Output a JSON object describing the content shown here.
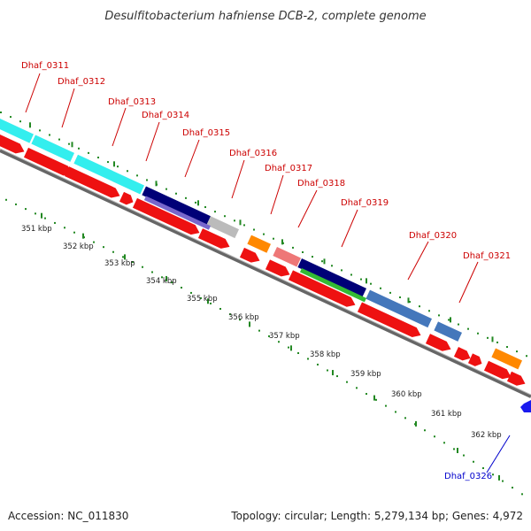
{
  "title": "Desulfitobacterium hafniense DCB-2, complete genome",
  "footer": {
    "accession": "Accession: NC_011830",
    "topology": "Topology: circular; Length: 5,279,134 bp; Genes: 4,972"
  },
  "colors": {
    "forward_label": "#cc0000",
    "reverse_label": "#0000cc",
    "red_arrow": "#ee1111",
    "backbone": "#888888",
    "tick": "#228822"
  },
  "gene_labels": [
    {
      "id": "Dhaf_0311",
      "strand": "forward"
    },
    {
      "id": "Dhaf_0312",
      "strand": "forward"
    },
    {
      "id": "Dhaf_0313",
      "strand": "forward"
    },
    {
      "id": "Dhaf_0314",
      "strand": "forward"
    },
    {
      "id": "Dhaf_0315",
      "strand": "forward"
    },
    {
      "id": "Dhaf_0316",
      "strand": "forward"
    },
    {
      "id": "Dhaf_0317",
      "strand": "forward"
    },
    {
      "id": "Dhaf_0318",
      "strand": "forward"
    },
    {
      "id": "Dhaf_0319",
      "strand": "forward"
    },
    {
      "id": "Dhaf_0320",
      "strand": "forward"
    },
    {
      "id": "Dhaf_0321",
      "strand": "forward"
    },
    {
      "id": "Dhaf_0326",
      "strand": "reverse"
    }
  ],
  "kbp_labels": [
    "351 kbp",
    "352 kbp",
    "353 kbp",
    "354 kbp",
    "355 kbp",
    "356 kbp",
    "357 kbp",
    "358 kbp",
    "359 kbp",
    "360 kbp",
    "361 kbp",
    "362 kbp"
  ]
}
